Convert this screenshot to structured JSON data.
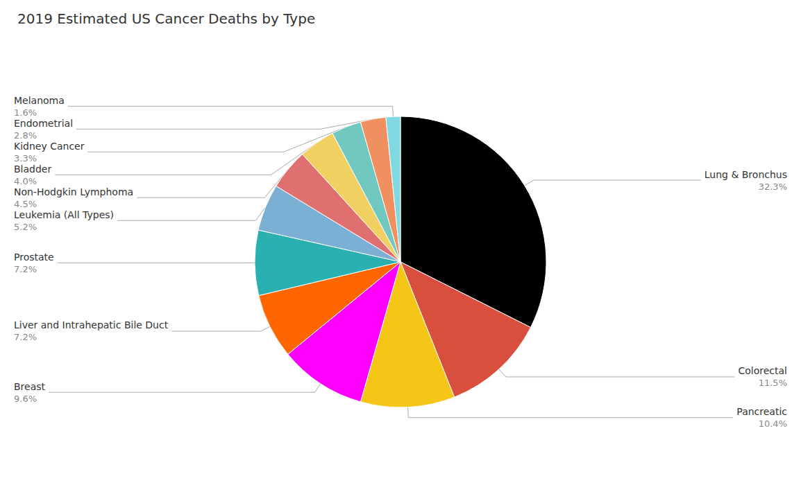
{
  "chart_data": {
    "type": "pie",
    "title": "2019 Estimated US Cancer Deaths by Type",
    "categories": [
      "Lung & Bronchus",
      "Colorectal",
      "Pancreatic",
      "Breast",
      "Liver and Intrahepatic Bile Duct",
      "Prostate",
      "Leukemia (All Types)",
      "Non-Hodgkin Lymphoma",
      "Bladder",
      "Kidney Cancer",
      "Endometrial",
      "Melanoma"
    ],
    "values": [
      32.3,
      11.5,
      10.4,
      9.6,
      7.2,
      7.2,
      5.2,
      4.5,
      4.0,
      3.3,
      2.8,
      1.6
    ],
    "value_labels": [
      "32.3%",
      "11.5%",
      "10.4%",
      "9.6%",
      "7.2%",
      "7.2%",
      "5.2%",
      "4.5%",
      "4.0%",
      "3.3%",
      "2.8%",
      "1.6%"
    ],
    "colors": [
      "#000000",
      "#d94f3d",
      "#f5c518",
      "#ff00ff",
      "#ff6600",
      "#2ab0b0",
      "#7bafd4",
      "#e07070",
      "#f0d060",
      "#70c8c0",
      "#f09060",
      "#80d8e0"
    ],
    "data_labels": true
  }
}
